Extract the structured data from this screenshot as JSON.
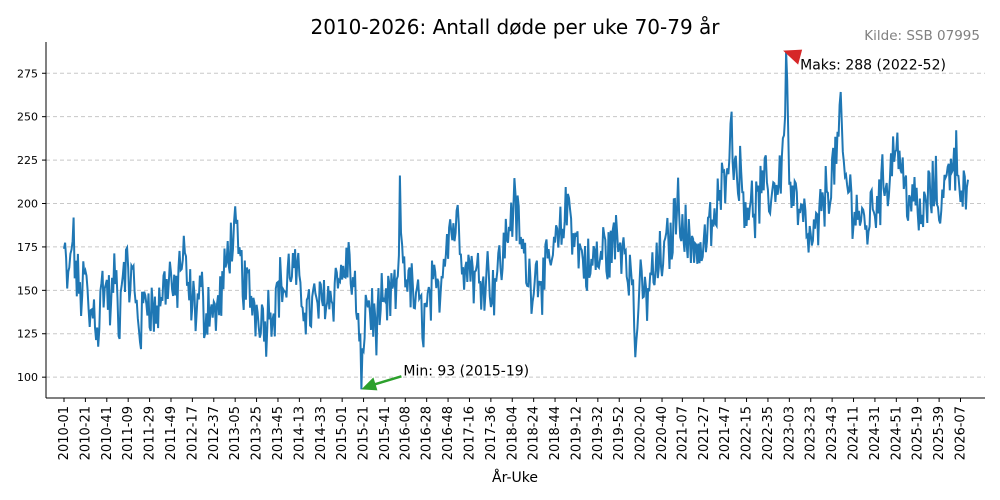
{
  "chart_data": {
    "type": "line",
    "title": "2010-2026: Antall døde per uke 70-79 år",
    "source": "Kilde: SSB 07995",
    "xlabel": "År-Uke",
    "ylabel": "",
    "ylim": [
      88,
      293
    ],
    "yticks": [
      100,
      125,
      150,
      175,
      200,
      225,
      250,
      275
    ],
    "grid": "horizontal-dashed",
    "line_color": "#1f77b4",
    "annotations": {
      "max": {
        "label": "Maks: 288 (2022-52)",
        "x": "2022-52",
        "y": 288,
        "arrow_color": "#d62728"
      },
      "min": {
        "label": "Min: 93 (2015-19)",
        "x": "2015-19",
        "y": 93,
        "arrow_color": "#2ca02c"
      }
    },
    "xticks": [
      "2010-01",
      "2010-21",
      "2010-41",
      "2011-09",
      "2011-29",
      "2011-49",
      "2012-17",
      "2012-37",
      "2013-05",
      "2013-25",
      "2013-45",
      "2014-13",
      "2014-33",
      "2015-01",
      "2015-21",
      "2015-41",
      "2016-08",
      "2016-28",
      "2016-48",
      "2017-16",
      "2017-36",
      "2018-04",
      "2018-24",
      "2018-44",
      "2019-12",
      "2019-32",
      "2019-52",
      "2020-20",
      "2020-40",
      "2021-07",
      "2021-27",
      "2021-47",
      "2022-15",
      "2022-35",
      "2023-03",
      "2023-23",
      "2023-43",
      "2024-11",
      "2024-31",
      "2024-51",
      "2025-19",
      "2025-39",
      "2026-07"
    ],
    "series": [
      {
        "points": [
          [
            "2010-01",
            172
          ],
          [
            "2010-05",
            150
          ],
          [
            "2010-09",
            183
          ],
          [
            "2010-13",
            155
          ],
          [
            "2010-17",
            148
          ],
          [
            "2010-21",
            158
          ],
          [
            "2010-25",
            132
          ],
          [
            "2010-29",
            141
          ],
          [
            "2010-33",
            127
          ],
          [
            "2010-37",
            155
          ],
          [
            "2010-41",
            150
          ],
          [
            "2010-45",
            140
          ],
          [
            "2010-49",
            162
          ],
          [
            "2010-52",
            130
          ],
          [
            "2011-05",
            170
          ],
          [
            "2011-09",
            155
          ],
          [
            "2011-13",
            158
          ],
          [
            "2011-17",
            140
          ],
          [
            "2011-21",
            127
          ],
          [
            "2011-25",
            148
          ],
          [
            "2011-29",
            146
          ],
          [
            "2011-33",
            135
          ],
          [
            "2011-37",
            140
          ],
          [
            "2011-41",
            150
          ],
          [
            "2011-45",
            155
          ],
          [
            "2011-49",
            160
          ],
          [
            "2011-52",
            140
          ],
          [
            "2012-05",
            165
          ],
          [
            "2012-09",
            168
          ],
          [
            "2012-13",
            150
          ],
          [
            "2012-17",
            143
          ],
          [
            "2012-21",
            140
          ],
          [
            "2012-25",
            150
          ],
          [
            "2012-29",
            135
          ],
          [
            "2012-33",
            145
          ],
          [
            "2012-37",
            135
          ],
          [
            "2012-41",
            140
          ],
          [
            "2012-45",
            150
          ],
          [
            "2012-49",
            165
          ],
          [
            "2012-52",
            178
          ],
          [
            "2013-05",
            180
          ],
          [
            "2013-09",
            168
          ],
          [
            "2013-13",
            155
          ],
          [
            "2013-17",
            150
          ],
          [
            "2013-21",
            145
          ],
          [
            "2013-25",
            138
          ],
          [
            "2013-29",
            140
          ],
          [
            "2013-33",
            128
          ],
          [
            "2013-37",
            142
          ],
          [
            "2013-41",
            140
          ],
          [
            "2013-45",
            150
          ],
          [
            "2013-49",
            155
          ],
          [
            "2013-52",
            148
          ],
          [
            "2014-05",
            165
          ],
          [
            "2014-09",
            160
          ],
          [
            "2014-13",
            150
          ],
          [
            "2014-17",
            145
          ],
          [
            "2014-21",
            138
          ],
          [
            "2014-25",
            140
          ],
          [
            "2014-29",
            144
          ],
          [
            "2014-33",
            140
          ],
          [
            "2014-37",
            150
          ],
          [
            "2014-41",
            145
          ],
          [
            "2014-45",
            150
          ],
          [
            "2014-49",
            160
          ],
          [
            "2014-52",
            155
          ],
          [
            "2015-05",
            168
          ],
          [
            "2015-09",
            160
          ],
          [
            "2015-13",
            148
          ],
          [
            "2015-17",
            120
          ],
          [
            "2015-19",
            93
          ],
          [
            "2015-21",
            130
          ],
          [
            "2015-25",
            145
          ],
          [
            "2015-29",
            135
          ],
          [
            "2015-33",
            130
          ],
          [
            "2015-37",
            140
          ],
          [
            "2015-41",
            135
          ],
          [
            "2015-45",
            145
          ],
          [
            "2015-49",
            150
          ],
          [
            "2015-52",
            140
          ],
          [
            "2016-03",
            198
          ],
          [
            "2016-05",
            175
          ],
          [
            "2016-09",
            160
          ],
          [
            "2016-13",
            150
          ],
          [
            "2016-17",
            145
          ],
          [
            "2016-21",
            140
          ],
          [
            "2016-25",
            135
          ],
          [
            "2016-29",
            140
          ],
          [
            "2016-33",
            150
          ],
          [
            "2016-37",
            145
          ],
          [
            "2016-41",
            155
          ],
          [
            "2016-45",
            175
          ],
          [
            "2016-49",
            190
          ],
          [
            "2016-52",
            185
          ],
          [
            "2017-05",
            190
          ],
          [
            "2017-09",
            175
          ],
          [
            "2017-13",
            160
          ],
          [
            "2017-17",
            168
          ],
          [
            "2017-21",
            155
          ],
          [
            "2017-25",
            160
          ],
          [
            "2017-29",
            158
          ],
          [
            "2017-33",
            162
          ],
          [
            "2017-37",
            150
          ],
          [
            "2017-41",
            160
          ],
          [
            "2017-45",
            165
          ],
          [
            "2017-49",
            175
          ],
          [
            "2017-52",
            185
          ],
          [
            "2018-05",
            200
          ],
          [
            "2018-09",
            190
          ],
          [
            "2018-13",
            175
          ],
          [
            "2018-17",
            165
          ],
          [
            "2018-21",
            155
          ],
          [
            "2018-25",
            160
          ],
          [
            "2018-29",
            162
          ],
          [
            "2018-33",
            155
          ],
          [
            "2018-37",
            160
          ],
          [
            "2018-41",
            170
          ],
          [
            "2018-45",
            175
          ],
          [
            "2018-49",
            180
          ],
          [
            "2018-52",
            190
          ],
          [
            "2019-05",
            200
          ],
          [
            "2019-09",
            185
          ],
          [
            "2019-13",
            175
          ],
          [
            "2019-17",
            170
          ],
          [
            "2019-21",
            165
          ],
          [
            "2019-25",
            160
          ],
          [
            "2019-29",
            170
          ],
          [
            "2019-33",
            165
          ],
          [
            "2019-37",
            175
          ],
          [
            "2019-41",
            170
          ],
          [
            "2019-45",
            175
          ],
          [
            "2019-49",
            180
          ],
          [
            "2019-52",
            175
          ],
          [
            "2020-05",
            180
          ],
          [
            "2020-09",
            165
          ],
          [
            "2020-13",
            150
          ],
          [
            "2020-15",
            112
          ],
          [
            "2020-17",
            140
          ],
          [
            "2020-21",
            150
          ],
          [
            "2020-25",
            145
          ],
          [
            "2020-29",
            155
          ],
          [
            "2020-33",
            160
          ],
          [
            "2020-37",
            165
          ],
          [
            "2020-41",
            170
          ],
          [
            "2020-45",
            175
          ],
          [
            "2020-49",
            180
          ],
          [
            "2020-52",
            195
          ],
          [
            "2021-05",
            200
          ],
          [
            "2021-09",
            185
          ],
          [
            "2021-13",
            175
          ],
          [
            "2021-17",
            180
          ],
          [
            "2021-21",
            175
          ],
          [
            "2021-25",
            170
          ],
          [
            "2021-29",
            180
          ],
          [
            "2021-33",
            185
          ],
          [
            "2021-37",
            190
          ],
          [
            "2021-41",
            200
          ],
          [
            "2021-45",
            210
          ],
          [
            "2021-49",
            230
          ],
          [
            "2021-52",
            240
          ],
          [
            "2022-05",
            225
          ],
          [
            "2022-09",
            215
          ],
          [
            "2022-13",
            205
          ],
          [
            "2022-17",
            200
          ],
          [
            "2022-21",
            195
          ],
          [
            "2022-25",
            200
          ],
          [
            "2022-29",
            205
          ],
          [
            "2022-33",
            210
          ],
          [
            "2022-37",
            205
          ],
          [
            "2022-41",
            210
          ],
          [
            "2022-45",
            215
          ],
          [
            "2022-49",
            225
          ],
          [
            "2022-52",
            288
          ],
          [
            "2023-03",
            210
          ],
          [
            "2023-07",
            205
          ],
          [
            "2023-11",
            195
          ],
          [
            "2023-15",
            190
          ],
          [
            "2023-19",
            185
          ],
          [
            "2023-23",
            175
          ],
          [
            "2023-27",
            180
          ],
          [
            "2023-31",
            190
          ],
          [
            "2023-35",
            200
          ],
          [
            "2023-39",
            210
          ],
          [
            "2023-43",
            215
          ],
          [
            "2023-47",
            230
          ],
          [
            "2023-51",
            245
          ],
          [
            "2024-03",
            215
          ],
          [
            "2024-07",
            205
          ],
          [
            "2024-11",
            200
          ],
          [
            "2024-15",
            195
          ],
          [
            "2024-19",
            190
          ],
          [
            "2024-23",
            185
          ],
          [
            "2024-27",
            195
          ],
          [
            "2024-31",
            200
          ],
          [
            "2024-35",
            205
          ],
          [
            "2024-39",
            210
          ],
          [
            "2024-43",
            215
          ],
          [
            "2024-47",
            225
          ],
          [
            "2024-51",
            240
          ],
          [
            "2025-03",
            220
          ],
          [
            "2025-07",
            210
          ],
          [
            "2025-11",
            205
          ],
          [
            "2025-15",
            200
          ],
          [
            "2025-19",
            195
          ],
          [
            "2025-23",
            190
          ],
          [
            "2025-27",
            200
          ],
          [
            "2025-31",
            205
          ],
          [
            "2025-35",
            210
          ],
          [
            "2025-39",
            200
          ],
          [
            "2025-43",
            205
          ],
          [
            "2025-47",
            215
          ],
          [
            "2025-51",
            230
          ],
          [
            "2026-03",
            225
          ],
          [
            "2026-07",
            215
          ],
          [
            "2026-11",
            205
          ],
          [
            "2026-14",
            200
          ]
        ]
      }
    ]
  }
}
